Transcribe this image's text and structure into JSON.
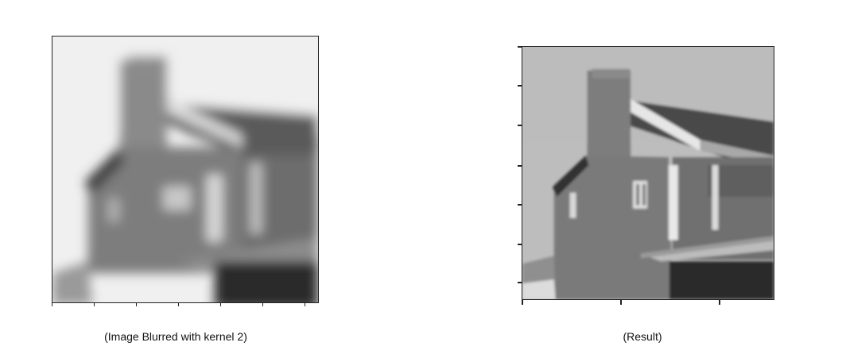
{
  "left_panel": {
    "caption": "(Image Blurred with kernel 2)"
  },
  "right_panel": {
    "caption": "(Result)"
  },
  "colors": {
    "sky_blurred": "#f0f0f0",
    "sky_result": "#bdbdbd",
    "wall": "#7d7d7d",
    "roof_dark": "#4a4a4a",
    "garage_dark": "#2a2a2a",
    "highlight": "#e6e6e6"
  }
}
